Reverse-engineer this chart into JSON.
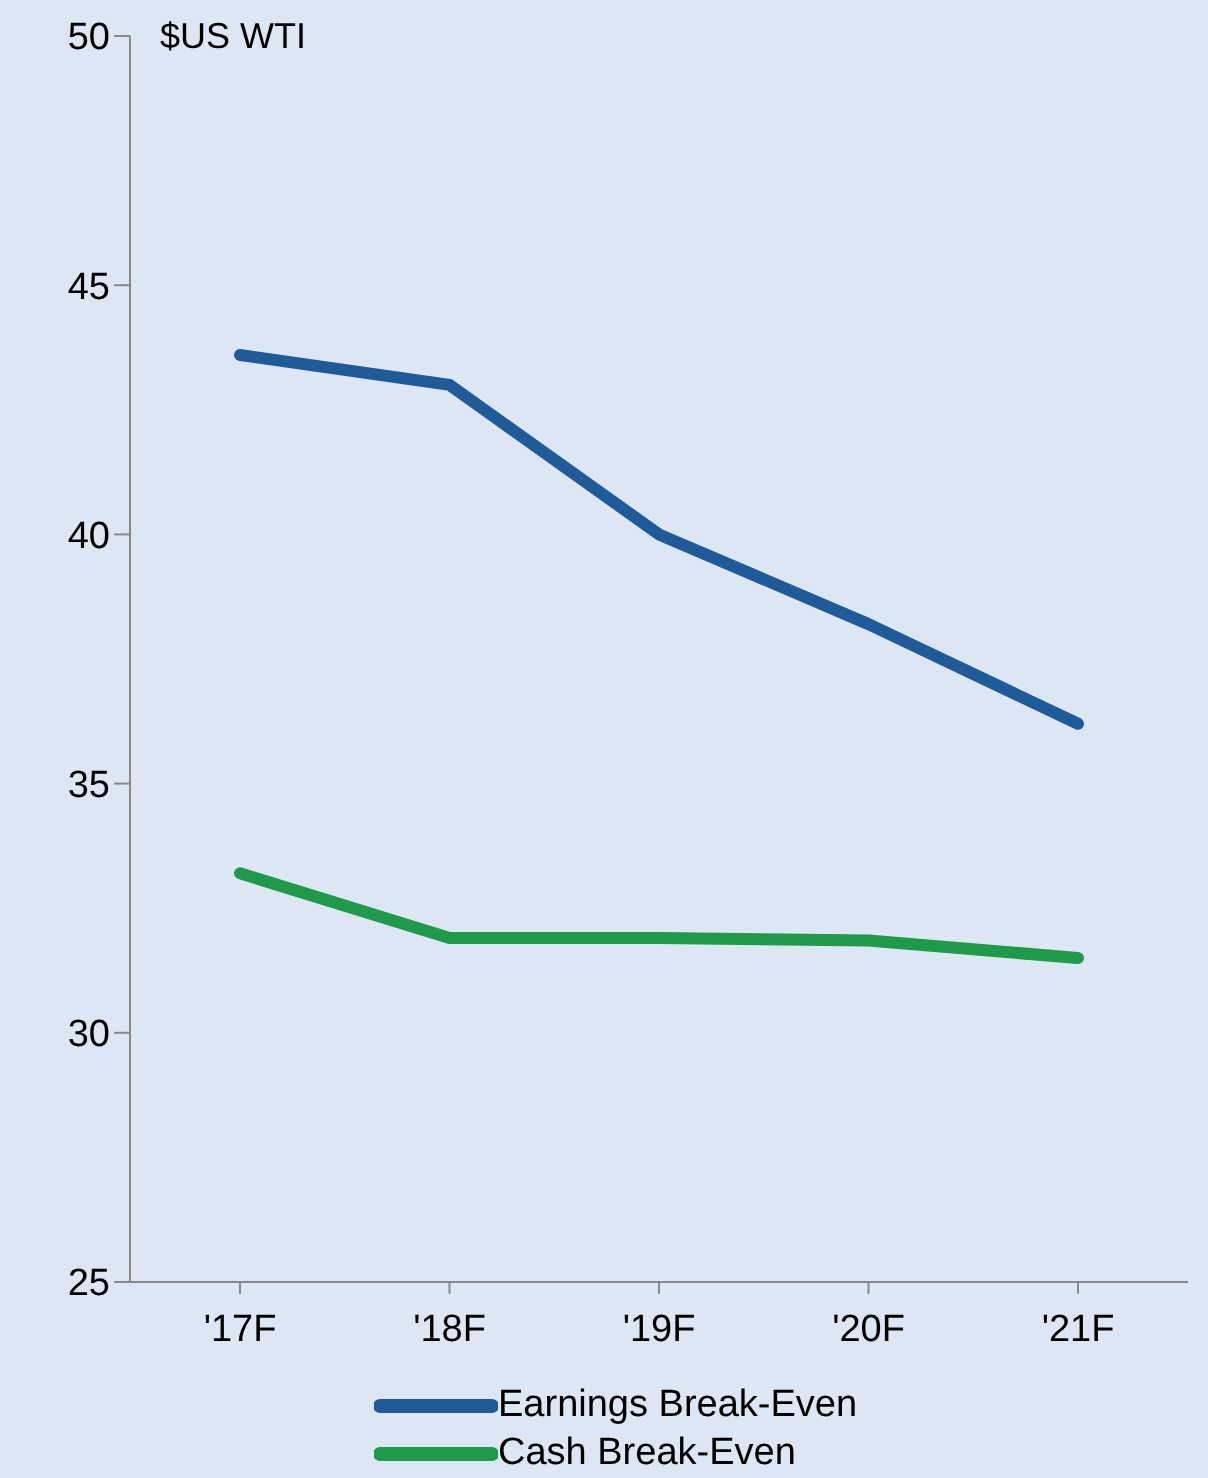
{
  "chart_data": {
    "type": "line",
    "ylabel": "$US WTI",
    "categories": [
      "'17F",
      "'18F",
      "'19F",
      "'20F",
      "'21F"
    ],
    "series": [
      {
        "name": "Earnings Break-Even",
        "color": "#1f5b98",
        "values": [
          43.6,
          43.0,
          40.0,
          38.2,
          36.2
        ]
      },
      {
        "name": "Cash Break-Even",
        "color": "#1e9a4a",
        "values": [
          33.2,
          31.9,
          31.9,
          31.85,
          31.5
        ]
      }
    ],
    "ylim": [
      25,
      50
    ],
    "yticks": [
      25,
      30,
      35,
      40,
      45,
      50
    ],
    "grid": false,
    "legend": "bottom",
    "marker": "none",
    "line_style": "solid"
  }
}
